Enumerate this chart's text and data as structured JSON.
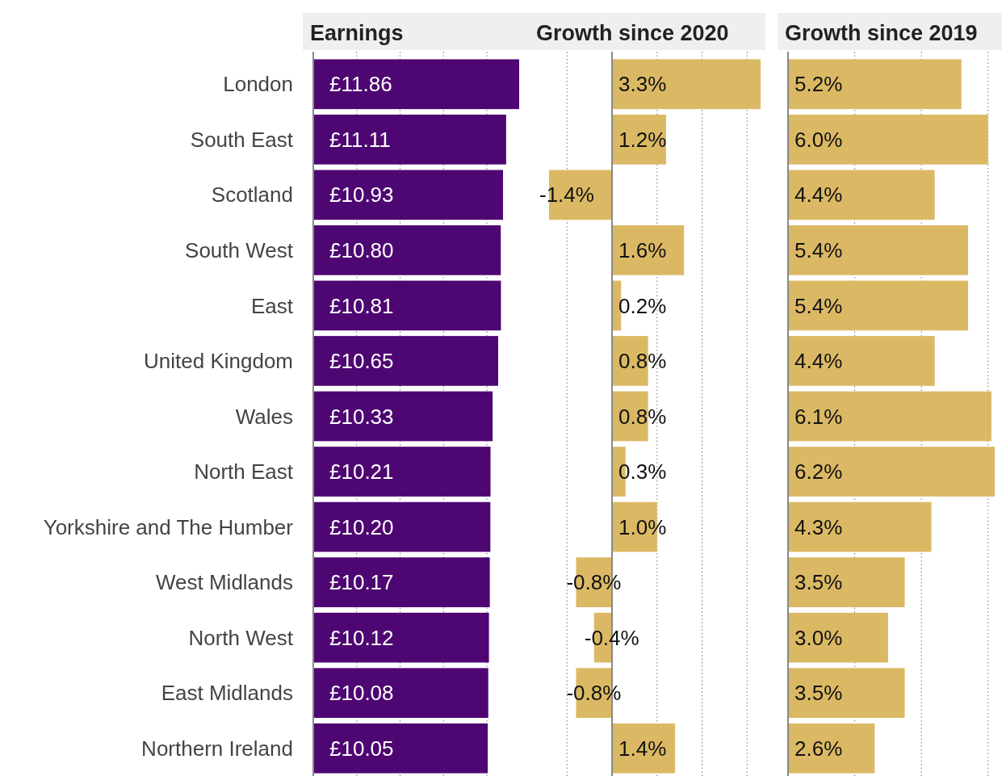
{
  "chart_data": [
    {
      "type": "bar",
      "orientation": "horizontal",
      "title": "Earnings",
      "categories": [
        "London",
        "South East",
        "Scotland",
        "South West",
        "East",
        "United Kingdom",
        "Wales",
        "North East",
        "Yorkshire and The Humber",
        "West Midlands",
        "North West",
        "East Midlands",
        "Northern Ireland"
      ],
      "values": [
        11.86,
        11.11,
        10.93,
        10.8,
        10.81,
        10.65,
        10.33,
        10.21,
        10.2,
        10.17,
        10.12,
        10.08,
        10.05
      ],
      "value_labels": [
        "£11.86",
        "£11.11",
        "£10.93",
        "£10.80",
        "£10.81",
        "£10.65",
        "£10.33",
        "£10.21",
        "£10.20",
        "£10.17",
        "£10.12",
        "£10.08",
        "£10.05"
      ],
      "color": "#4e0772",
      "xticks": [
        {
          "value": 2.5,
          "label": null
        },
        {
          "value": 5,
          "label": null
        },
        {
          "value": 7.5,
          "label": null
        },
        {
          "value": 10,
          "label": null
        }
      ],
      "grid": "x",
      "tick_labels": "y"
    },
    {
      "type": "bar",
      "orientation": "horizontal",
      "title": "Growth since 2020",
      "categories": [
        null,
        null,
        null,
        null,
        null,
        null,
        null,
        null,
        null,
        null,
        null,
        null,
        null
      ],
      "values": [
        3.3,
        1.2,
        -1.4,
        1.6,
        0.2,
        0.8,
        0.8,
        0.3,
        1.0,
        -0.8,
        -0.4,
        -0.8,
        1.4
      ],
      "value_labels": [
        "3.3%",
        "1.2%",
        "-1.4%",
        "1.6%",
        "0.2%",
        "0.8%",
        "0.8%",
        "0.3%",
        "1.0%",
        "-0.8%",
        "-0.4%",
        "-0.8%",
        "1.4%"
      ],
      "color": "#dbb964",
      "xticks": [
        {
          "value": -1,
          "label": null
        },
        {
          "value": 1,
          "label": null
        },
        {
          "value": 2,
          "label": null
        },
        {
          "value": 3,
          "label": null
        }
      ],
      "grid": "x",
      "tick_labels": false
    },
    {
      "type": "bar",
      "orientation": "horizontal",
      "title": "Growth since 2019",
      "categories": [
        null,
        null,
        null,
        null,
        null,
        null,
        null,
        null,
        null,
        null,
        null,
        null,
        null
      ],
      "values": [
        5.2,
        6.0,
        4.4,
        5.4,
        5.4,
        4.4,
        6.1,
        6.2,
        4.3,
        3.5,
        3.0,
        3.5,
        2.6
      ],
      "value_labels": [
        "5.2%",
        "6.0%",
        "4.4%",
        "5.4%",
        "5.4%",
        "4.4%",
        "6.1%",
        "6.2%",
        "4.3%",
        "3.5%",
        "3.0%",
        "3.5%",
        "2.6%"
      ],
      "color": "#dbb964",
      "xticks": [
        {
          "value": 2,
          "label": null
        },
        {
          "value": 4,
          "label": null
        },
        {
          "value": 6,
          "label": null
        }
      ],
      "grid": "x",
      "tick_labels": false
    }
  ]
}
